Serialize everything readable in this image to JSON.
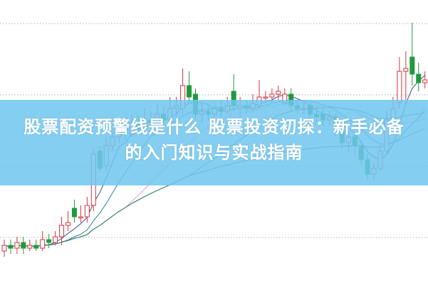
{
  "banner": {
    "title_line1": "股票配资预警线是什么 股票投资初探：新手必备",
    "title_line2": "的入门知识与实战指南",
    "color": "#70c6f0"
  },
  "chart_data": {
    "type": "candlestick",
    "title": "",
    "xlabel": "",
    "ylabel": "",
    "grid": true,
    "up_color": "#d8323c",
    "down_color": "#1f9a3c",
    "moving_average_periods": [
      5,
      10,
      20,
      30,
      60
    ],
    "moving_average_colors": [
      "#3a4f8f",
      "#2b7fa6",
      "#e59be6",
      "#3e8c3a",
      "#2a7f7a"
    ],
    "ohlc": [
      [
        12,
        14,
        16,
        10
      ],
      [
        14,
        13,
        16,
        11
      ],
      [
        13,
        15,
        17,
        11
      ],
      [
        15,
        13,
        17,
        11
      ],
      [
        13,
        14,
        16,
        12
      ],
      [
        14,
        13,
        16,
        12
      ],
      [
        13,
        16,
        19,
        12
      ],
      [
        16,
        15,
        18,
        13
      ],
      [
        15,
        17,
        19,
        14
      ],
      [
        17,
        21,
        24,
        14
      ],
      [
        21,
        22,
        26,
        19
      ],
      [
        27,
        24,
        30,
        22
      ],
      [
        24,
        24,
        28,
        22
      ],
      [
        24,
        28,
        31,
        22
      ],
      [
        28,
        46,
        48,
        26
      ],
      [
        47,
        41,
        49,
        40
      ],
      [
        42,
        49,
        52,
        40
      ],
      [
        49,
        52,
        55,
        47
      ],
      [
        52,
        55,
        58,
        50
      ],
      [
        55,
        53,
        58,
        51
      ],
      [
        53,
        57,
        60,
        52
      ],
      [
        57,
        55,
        60,
        53
      ],
      [
        55,
        58,
        62,
        54
      ],
      [
        58,
        57,
        61,
        55
      ],
      [
        57,
        60,
        64,
        56
      ],
      [
        60,
        58,
        63,
        56
      ],
      [
        58,
        62,
        66,
        57
      ],
      [
        62,
        63,
        66,
        58
      ],
      [
        62,
        70,
        76,
        60
      ],
      [
        70,
        66,
        75,
        64
      ],
      [
        67,
        60,
        69,
        58
      ],
      [
        60,
        61,
        64,
        57
      ],
      [
        61,
        60,
        63,
        58
      ],
      [
        60,
        62,
        64,
        59
      ],
      [
        62,
        61,
        65,
        59
      ],
      [
        61,
        63,
        66,
        60
      ],
      [
        68,
        63,
        74,
        61
      ],
      [
        62,
        63,
        66,
        59
      ],
      [
        63,
        62,
        65,
        60
      ],
      [
        62,
        64,
        67,
        61
      ],
      [
        63,
        66,
        72,
        62
      ],
      [
        66,
        66,
        68,
        64
      ],
      [
        66,
        67,
        69,
        64
      ],
      [
        67,
        68,
        70,
        65
      ],
      [
        64,
        67,
        69,
        63
      ],
      [
        67,
        63,
        69,
        61
      ],
      [
        63,
        62,
        65,
        60
      ],
      [
        62,
        62,
        64,
        60
      ],
      [
        63,
        60,
        64,
        58
      ],
      [
        60,
        59,
        62,
        57
      ],
      [
        60,
        58,
        62,
        56
      ],
      [
        58,
        59,
        61,
        56
      ],
      [
        59,
        56,
        60,
        52
      ],
      [
        54,
        50,
        56,
        48
      ],
      [
        50,
        52,
        54,
        47
      ],
      [
        52,
        49,
        54,
        46
      ],
      [
        49,
        44,
        51,
        42
      ],
      [
        44,
        39,
        46,
        37
      ],
      [
        39,
        41,
        43,
        37
      ],
      [
        41,
        47,
        49,
        40
      ],
      [
        47,
        58,
        61,
        46
      ],
      [
        58,
        62,
        66,
        56
      ],
      [
        64,
        75,
        80,
        62
      ],
      [
        75,
        76,
        82,
        65
      ],
      [
        80,
        74,
        92,
        70
      ],
      [
        74,
        71,
        78,
        68
      ],
      [
        71,
        72,
        75,
        69
      ]
    ]
  }
}
